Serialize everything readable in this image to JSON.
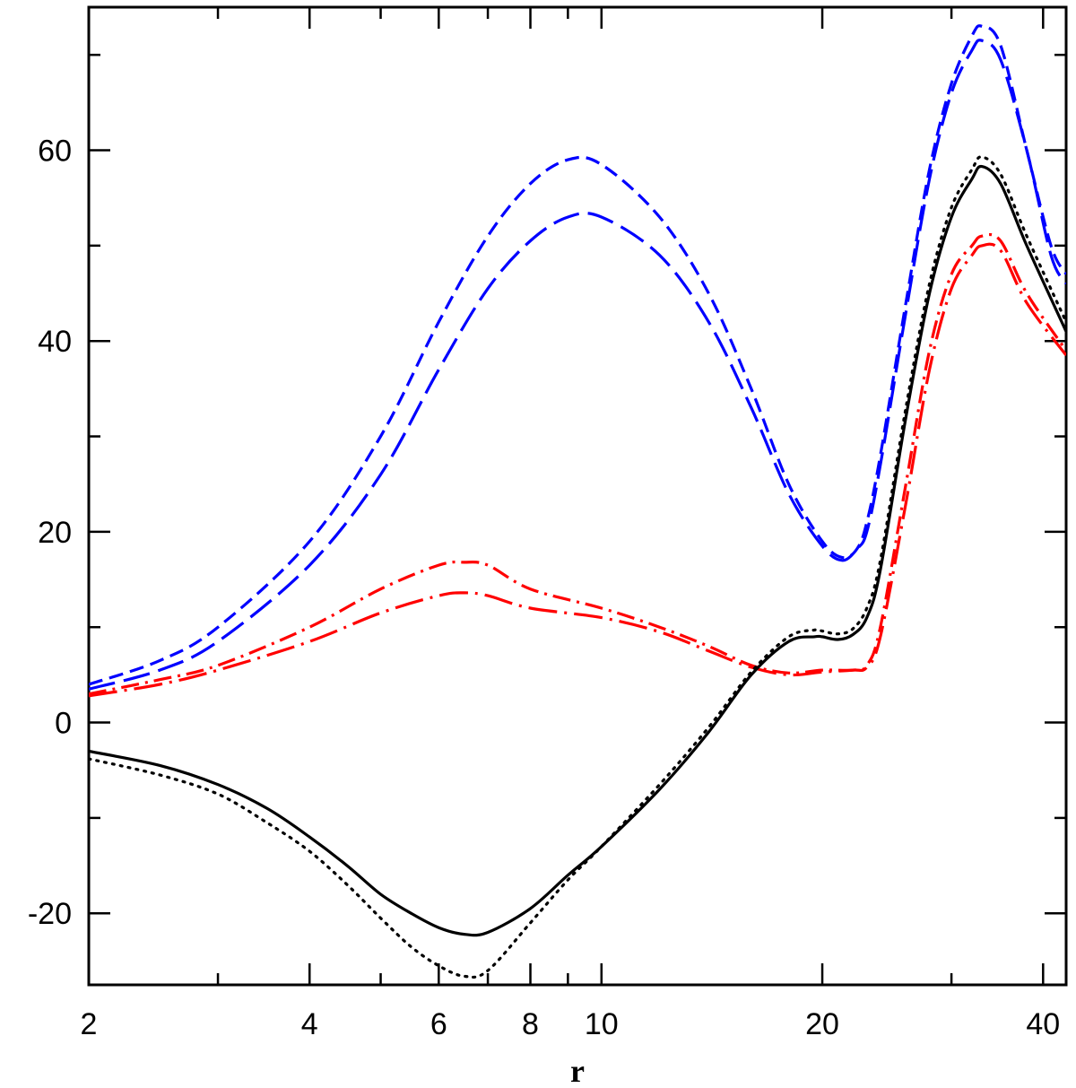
{
  "chart_data": {
    "type": "line",
    "title": "",
    "xlabel": "r",
    "ylabel": "",
    "xscale": "log",
    "xlim": [
      2,
      43
    ],
    "ylim": [
      -27.5,
      75
    ],
    "grid": false,
    "legend": "none",
    "x_ticks_major": [
      2,
      4,
      6,
      8,
      10,
      20,
      40
    ],
    "x_tick_labels": [
      "2",
      "4",
      "6",
      "8",
      "10",
      "20",
      "40"
    ],
    "x_ticks_minor": [
      3,
      5,
      7,
      9,
      30
    ],
    "y_ticks_major": [
      -20,
      0,
      20,
      40,
      60
    ],
    "y_tick_labels": [
      "-20",
      "0",
      "20",
      "40",
      "60"
    ],
    "y_ticks_minor": [
      -10,
      10,
      30,
      50,
      70
    ],
    "series": [
      {
        "color": "#0000ff",
        "dash": "short-dash",
        "points": [
          [
            2,
            4
          ],
          [
            2.5,
            6.5
          ],
          [
            3,
            10
          ],
          [
            4,
            19
          ],
          [
            5,
            30
          ],
          [
            6,
            42
          ],
          [
            7,
            51
          ],
          [
            8,
            56.5
          ],
          [
            9,
            59
          ],
          [
            10,
            58.5
          ],
          [
            12,
            53
          ],
          [
            14,
            45
          ],
          [
            16,
            35
          ],
          [
            18,
            25
          ],
          [
            20,
            19
          ],
          [
            21.3,
            17.3
          ],
          [
            22.3,
            18.2
          ],
          [
            23,
            21
          ],
          [
            24,
            28
          ],
          [
            26,
            44
          ],
          [
            28,
            58
          ],
          [
            30,
            67
          ],
          [
            32,
            72
          ],
          [
            33,
            73
          ],
          [
            35,
            71
          ],
          [
            38,
            60
          ],
          [
            41,
            50
          ],
          [
            43,
            47
          ]
        ]
      },
      {
        "color": "#0000ff",
        "dash": "long-dash",
        "points": [
          [
            2,
            3.5
          ],
          [
            2.5,
            5.5
          ],
          [
            3,
            8.5
          ],
          [
            4,
            16.5
          ],
          [
            5,
            26
          ],
          [
            6,
            37
          ],
          [
            7,
            45.5
          ],
          [
            8,
            50.5
          ],
          [
            9,
            53
          ],
          [
            10,
            53
          ],
          [
            12,
            49
          ],
          [
            14,
            42
          ],
          [
            16,
            33
          ],
          [
            18,
            24
          ],
          [
            20,
            18.5
          ],
          [
            21.3,
            17
          ],
          [
            22.3,
            18.2
          ],
          [
            23,
            20
          ],
          [
            24,
            27
          ],
          [
            26,
            43
          ],
          [
            28,
            57
          ],
          [
            30,
            66
          ],
          [
            32,
            70.5
          ],
          [
            33,
            71.5
          ],
          [
            35,
            69.5
          ],
          [
            38,
            60
          ],
          [
            41,
            49
          ],
          [
            43,
            46
          ]
        ]
      },
      {
        "color": "#ff0000",
        "dash": "dash-dot",
        "points": [
          [
            2,
            3
          ],
          [
            2.5,
            4.5
          ],
          [
            3,
            6
          ],
          [
            4,
            10
          ],
          [
            5,
            14
          ],
          [
            6,
            16.5
          ],
          [
            6.5,
            16.8
          ],
          [
            7,
            16.5
          ],
          [
            8,
            14
          ],
          [
            10,
            12
          ],
          [
            12,
            10
          ],
          [
            14,
            8
          ],
          [
            16,
            6
          ],
          [
            18,
            5.2
          ],
          [
            20,
            5.5
          ],
          [
            22,
            5.5
          ],
          [
            23,
            6
          ],
          [
            24,
            10
          ],
          [
            26,
            25
          ],
          [
            28,
            39
          ],
          [
            30,
            47
          ],
          [
            32,
            50
          ],
          [
            33,
            51
          ],
          [
            35,
            50.5
          ],
          [
            38,
            45
          ],
          [
            43,
            39
          ]
        ]
      },
      {
        "color": "#ff0000",
        "dash": "long-dash-dot",
        "points": [
          [
            2,
            2.8
          ],
          [
            2.5,
            4
          ],
          [
            3,
            5.5
          ],
          [
            4,
            8.5
          ],
          [
            5,
            11.5
          ],
          [
            6,
            13.3
          ],
          [
            6.5,
            13.6
          ],
          [
            7,
            13.3
          ],
          [
            8,
            12
          ],
          [
            10,
            11
          ],
          [
            12,
            9.5
          ],
          [
            14,
            7.5
          ],
          [
            16,
            5.8
          ],
          [
            18,
            5
          ],
          [
            20,
            5.3
          ],
          [
            22,
            5.5
          ],
          [
            23,
            5.8
          ],
          [
            24,
            9
          ],
          [
            26,
            23
          ],
          [
            28,
            37
          ],
          [
            30,
            45.5
          ],
          [
            32,
            49
          ],
          [
            33,
            50
          ],
          [
            35,
            49.5
          ],
          [
            38,
            44
          ],
          [
            43,
            38.5
          ]
        ]
      },
      {
        "color": "#000000",
        "dash": "solid",
        "points": [
          [
            2,
            -3
          ],
          [
            2.5,
            -4.5
          ],
          [
            3,
            -6.5
          ],
          [
            3.5,
            -9
          ],
          [
            4,
            -12
          ],
          [
            4.5,
            -15
          ],
          [
            5,
            -18
          ],
          [
            5.5,
            -20
          ],
          [
            6,
            -21.5
          ],
          [
            6.5,
            -22.2
          ],
          [
            7,
            -22
          ],
          [
            8,
            -19.5
          ],
          [
            9,
            -16
          ],
          [
            10,
            -13
          ],
          [
            12,
            -7
          ],
          [
            14,
            -1
          ],
          [
            16,
            5
          ],
          [
            18,
            8.5
          ],
          [
            19.5,
            9
          ],
          [
            20,
            9
          ],
          [
            21,
            8.7
          ],
          [
            22,
            9.2
          ],
          [
            23,
            11
          ],
          [
            24,
            16
          ],
          [
            26,
            32
          ],
          [
            28,
            45
          ],
          [
            30,
            53
          ],
          [
            32,
            57
          ],
          [
            33,
            58.3
          ],
          [
            35,
            56.5
          ],
          [
            38,
            50
          ],
          [
            43,
            41
          ]
        ]
      },
      {
        "color": "#000000",
        "dash": "dotted",
        "points": [
          [
            2,
            -3.8
          ],
          [
            2.5,
            -5.5
          ],
          [
            3,
            -7.5
          ],
          [
            3.5,
            -10.5
          ],
          [
            4,
            -13.5
          ],
          [
            4.5,
            -17
          ],
          [
            5,
            -20.5
          ],
          [
            5.5,
            -23.5
          ],
          [
            6,
            -25.5
          ],
          [
            6.5,
            -26.6
          ],
          [
            7,
            -26
          ],
          [
            8,
            -21
          ],
          [
            9,
            -16.5
          ],
          [
            10,
            -13
          ],
          [
            12,
            -6.5
          ],
          [
            14,
            -0.5
          ],
          [
            16,
            5.3
          ],
          [
            18,
            9
          ],
          [
            19.5,
            9.7
          ],
          [
            20,
            9.6
          ],
          [
            21,
            9.3
          ],
          [
            22,
            9.8
          ],
          [
            23,
            12
          ],
          [
            24,
            17
          ],
          [
            26,
            33
          ],
          [
            28,
            46
          ],
          [
            30,
            54
          ],
          [
            32,
            58
          ],
          [
            33,
            59.3
          ],
          [
            35,
            57.5
          ],
          [
            38,
            51
          ],
          [
            43,
            42
          ]
        ]
      }
    ]
  }
}
